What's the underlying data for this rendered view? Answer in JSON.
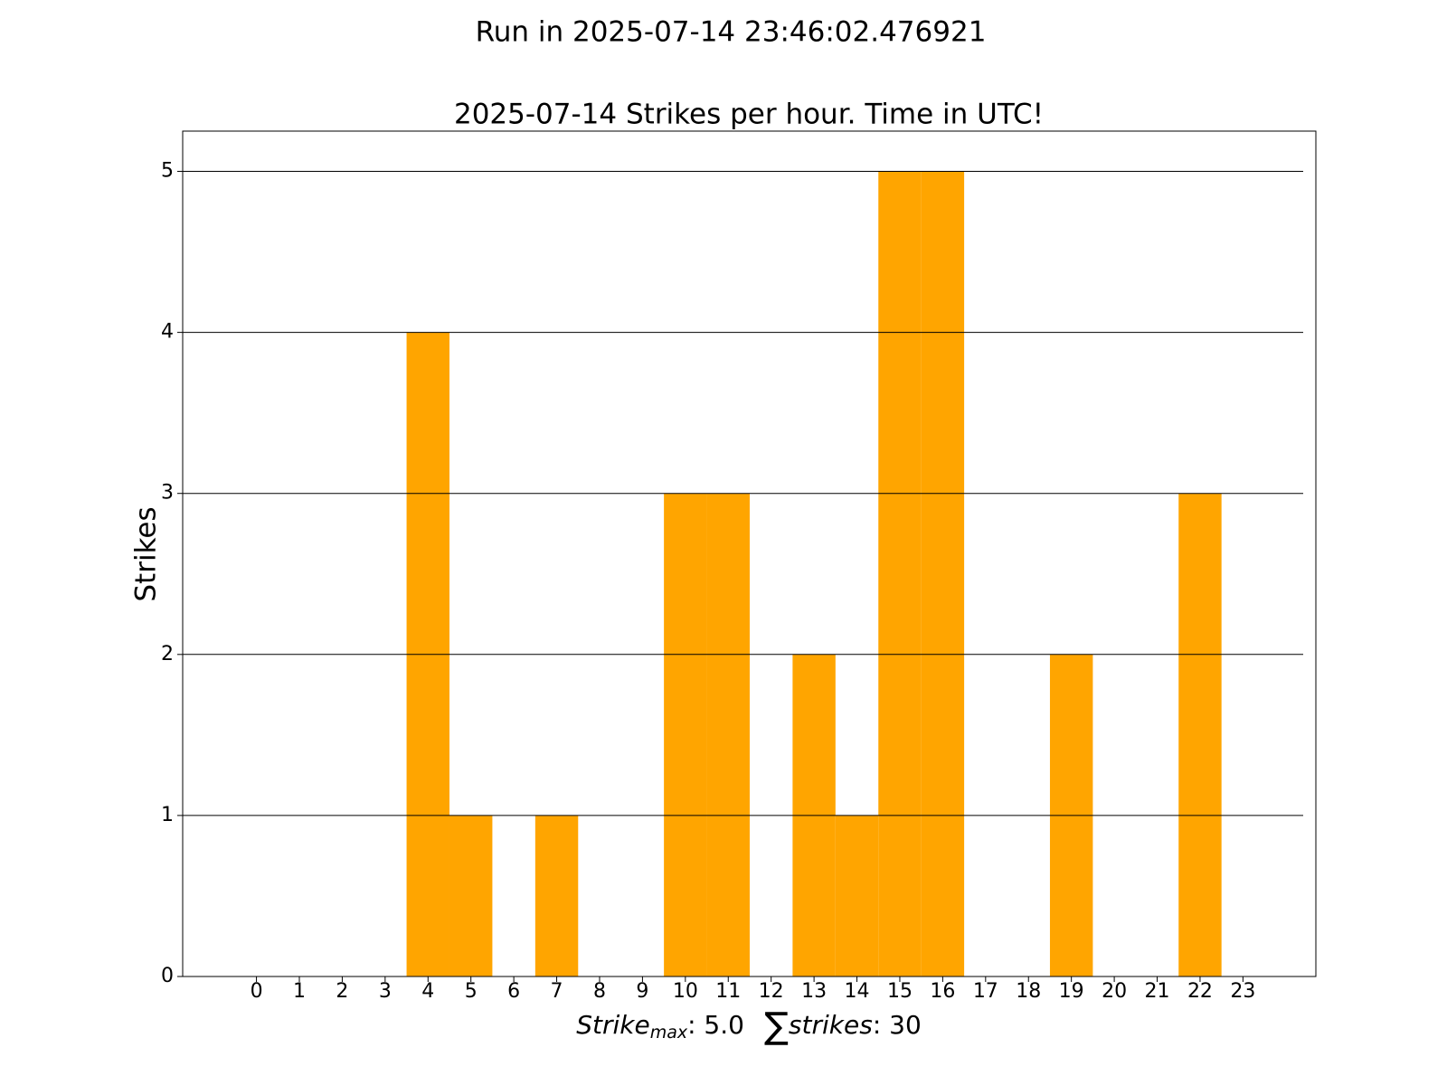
{
  "chart_data": {
    "type": "bar",
    "suptitle": "Run in 2025-07-14 23:46:02.476921",
    "title": "2025-07-14 Strikes per hour. Time in UTC!",
    "ylabel": "Strikes",
    "xlabel": [
      "Strike",
      "max",
      ": 5.0",
      "∑",
      "strikes",
      ": 30"
    ],
    "categories": [
      "0",
      "1",
      "2",
      "3",
      "4",
      "5",
      "6",
      "7",
      "8",
      "9",
      "10",
      "11",
      "12",
      "13",
      "14",
      "15",
      "16",
      "17",
      "18",
      "19",
      "20",
      "21",
      "22",
      "23"
    ],
    "values": [
      0,
      0,
      0,
      0,
      4,
      1,
      0,
      1,
      0,
      0,
      3,
      3,
      0,
      2,
      1,
      5,
      5,
      0,
      0,
      2,
      0,
      0,
      3,
      0
    ],
    "color": "#ffa500",
    "xlim": [
      -1.72,
      24.7
    ],
    "ylim": [
      0,
      5.25
    ],
    "yticks": [
      0,
      1,
      2,
      3,
      4,
      5
    ],
    "grid": true
  }
}
